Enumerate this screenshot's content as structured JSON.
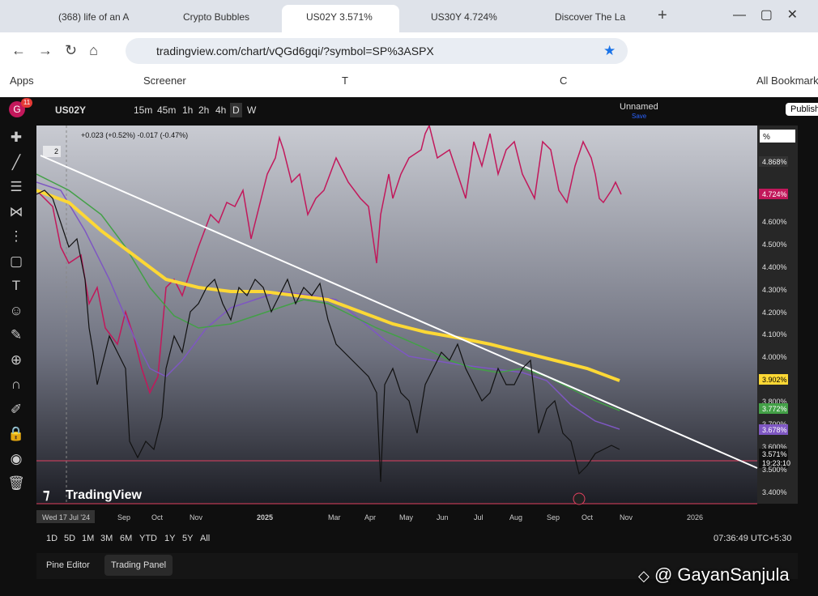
{
  "browser": {
    "tabs": [
      "(368) life of an A",
      "Crypto Bubbles",
      "US02Y 3.571%",
      "US30Y 4.724%",
      "Discover The La"
    ],
    "url": "tradingview.com/chart/vQGd6gqi/?symbol=SP%3ASPX",
    "bookmarks": [
      "Apps",
      "Screener",
      "T",
      "C"
    ],
    "all_bookmarks": "All Bookmarks"
  },
  "toolbar": {
    "avatar": "G",
    "badge": "11",
    "symbol": "US02Y",
    "intervals": [
      "15m",
      "45m",
      "1h",
      "2h",
      "4h",
      "D",
      "W"
    ],
    "layout_name": "Unnamed",
    "save": "Save",
    "publish": "Publish"
  },
  "chart": {
    "legend": "+0.023 (+0.52%) -0.017 (-0.47%)",
    "legend_count": "2",
    "scale_unit": "%",
    "price_labels": [
      "4.868%",
      "4.724%",
      "4.600%",
      "4.500%",
      "4.400%",
      "4.300%",
      "4.200%",
      "4.100%",
      "4.000%",
      "3.902%",
      "3.800%",
      "3.772%",
      "3.700%",
      "3.678%",
      "3.600%",
      "3.571%",
      "19:23:10",
      "3.500%",
      "3.400%"
    ],
    "time_labels": [
      "Wed 17 Jul '24",
      "Sep",
      "Oct",
      "Nov",
      "2025",
      "Mar",
      "Apr",
      "May",
      "Jun",
      "Jul",
      "Aug",
      "Sep",
      "Oct",
      "Nov",
      "2026"
    ],
    "logo": "TradingView"
  },
  "footer": {
    "ranges": [
      "1D",
      "5D",
      "1M",
      "3M",
      "6M",
      "YTD",
      "1Y",
      "5Y",
      "All"
    ],
    "clock": "07:36:49 UTC+5:30",
    "panels": [
      "Pine Editor",
      "Trading Panel"
    ],
    "watermark": "@ GayanSanjula"
  }
}
